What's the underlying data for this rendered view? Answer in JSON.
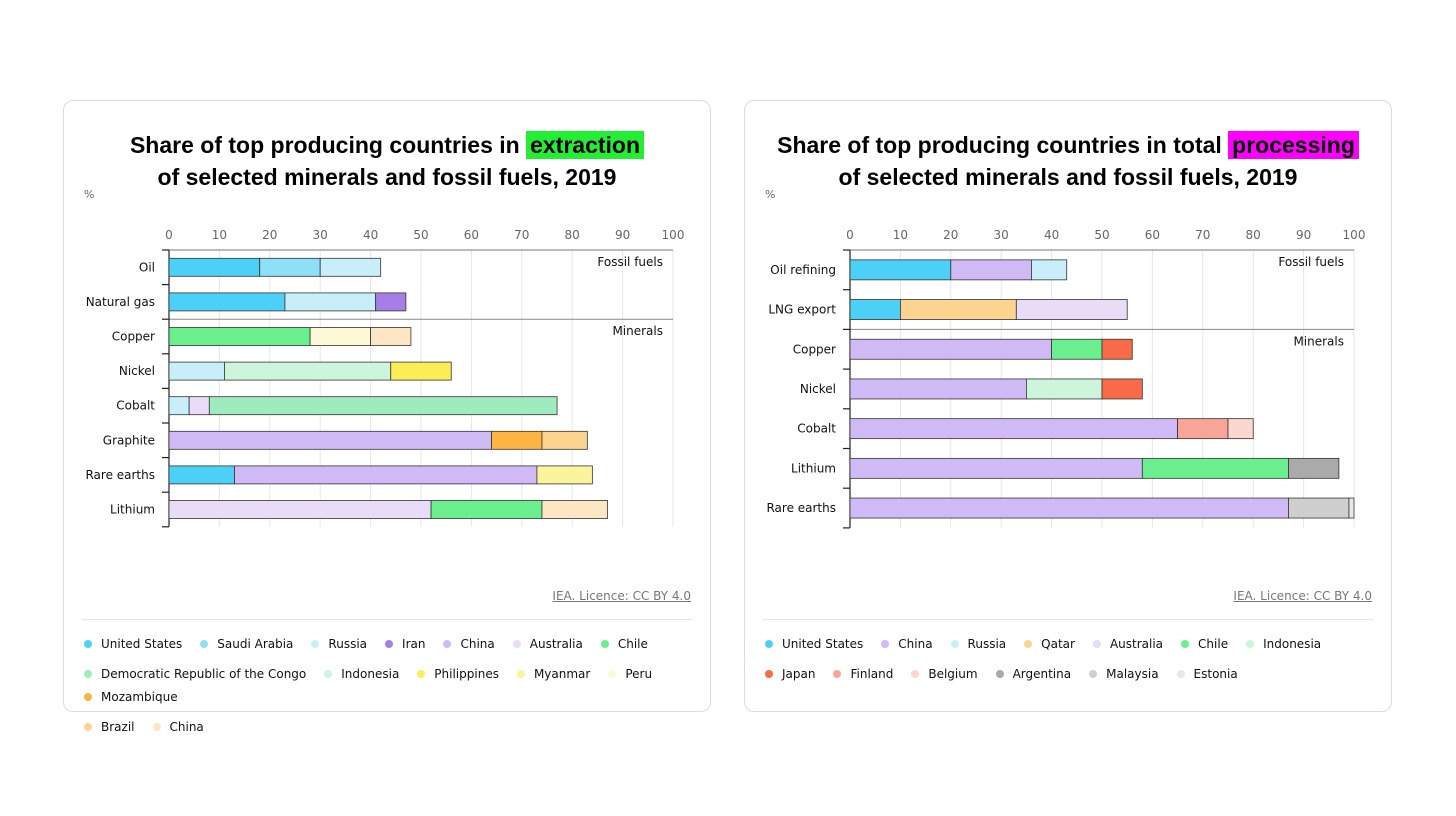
{
  "chart_data": [
    {
      "type": "bar",
      "orientation": "horizontal",
      "stacked": true,
      "title_prefix": "Share of top producing countries in",
      "title_highlight": "extraction",
      "title_line2": "of selected minerals and fossil fuels, 2019",
      "highlight_color": "#22ee33",
      "unit_label": "%",
      "xlim": [
        0,
        100
      ],
      "xticks": [
        0,
        10,
        20,
        30,
        40,
        50,
        60,
        70,
        80,
        90,
        100
      ],
      "grid": true,
      "source": "IEA. Licence: CC BY 4.0",
      "groups": [
        {
          "label": "Fossil fuels",
          "categories": [
            "Oil",
            "Natural gas"
          ]
        },
        {
          "label": "Minerals",
          "categories": [
            "Copper",
            "Nickel",
            "Cobalt",
            "Graphite",
            "Rare earths",
            "Lithium"
          ]
        }
      ],
      "rows": [
        {
          "category": "Oil",
          "segments": [
            {
              "country": "United States",
              "value": 18
            },
            {
              "country": "Saudi Arabia",
              "value": 12
            },
            {
              "country": "Russia",
              "value": 12
            }
          ]
        },
        {
          "category": "Natural gas",
          "segments": [
            {
              "country": "United States",
              "value": 23
            },
            {
              "country": "Russia",
              "value": 18
            },
            {
              "country": "Iran",
              "value": 6
            }
          ]
        },
        {
          "category": "Copper",
          "segments": [
            {
              "country": "Chile",
              "value": 28
            },
            {
              "country": "Peru",
              "value": 12
            },
            {
              "country": "China",
              "value": 8
            }
          ]
        },
        {
          "category": "Nickel",
          "segments": [
            {
              "country": "Russia",
              "value": 11
            },
            {
              "country": "Indonesia",
              "value": 33
            },
            {
              "country": "Philippines",
              "value": 12
            }
          ]
        },
        {
          "category": "Cobalt",
          "segments": [
            {
              "country": "Russia",
              "value": 4
            },
            {
              "country": "Australia",
              "value": 4
            },
            {
              "country": "Democratic Republic of the Congo",
              "value": 69
            }
          ]
        },
        {
          "category": "Graphite",
          "segments": [
            {
              "country": "China",
              "value": 64
            },
            {
              "country": "Mozambique",
              "value": 10
            },
            {
              "country": "Brazil",
              "value": 9
            }
          ]
        },
        {
          "category": "Rare earths",
          "segments": [
            {
              "country": "United States",
              "value": 13
            },
            {
              "country": "China",
              "value": 60
            },
            {
              "country": "Myanmar",
              "value": 11
            }
          ]
        },
        {
          "category": "Lithium",
          "segments": [
            {
              "country": "Australia",
              "value": 52
            },
            {
              "country": "Chile",
              "value": 22
            },
            {
              "country": "China",
              "value": 13
            }
          ]
        }
      ],
      "legend": [
        {
          "name": "United States",
          "color": "#4dd0f7"
        },
        {
          "name": "Saudi Arabia",
          "color": "#8ee0f7"
        },
        {
          "name": "Russia",
          "color": "#c8eefa"
        },
        {
          "name": "Iran",
          "color": "#a67ee6"
        },
        {
          "name": "China",
          "color": "#cfbaf5"
        },
        {
          "name": "Australia",
          "color": "#e8dcf8"
        },
        {
          "name": "Chile",
          "color": "#6aee8e"
        },
        {
          "name": "Democratic Republic of the Congo",
          "color": "#9debbe"
        },
        {
          "name": "Indonesia",
          "color": "#cdf5dc"
        },
        {
          "name": "Philippines",
          "color": "#fbef55"
        },
        {
          "name": "Myanmar",
          "color": "#fcf49c"
        },
        {
          "name": "Peru",
          "color": "#fdf9d6"
        },
        {
          "name": "Mozambique",
          "color": "#fdb443"
        },
        {
          "name": "Brazil",
          "color": "#fcd490"
        },
        {
          "name": "China",
          "color": "#fde6c4"
        }
      ]
    },
    {
      "type": "bar",
      "orientation": "horizontal",
      "stacked": true,
      "title_prefix": "Share of top producing countries in total",
      "title_highlight": "processing",
      "title_line2": "of selected minerals and fossil fuels, 2019",
      "highlight_color": "#ff00ff",
      "unit_label": "%",
      "xlim": [
        0,
        100
      ],
      "xticks": [
        0,
        10,
        20,
        30,
        40,
        50,
        60,
        70,
        80,
        90,
        100
      ],
      "grid": true,
      "source": "IEA. Licence: CC BY 4.0",
      "groups": [
        {
          "label": "Fossil fuels",
          "categories": [
            "Oil refining",
            "LNG export"
          ]
        },
        {
          "label": "Minerals",
          "categories": [
            "Copper",
            "Nickel",
            "Cobalt",
            "Lithium",
            "Rare earths"
          ]
        }
      ],
      "rows": [
        {
          "category": "Oil refining",
          "segments": [
            {
              "country": "United States",
              "value": 20
            },
            {
              "country": "China",
              "value": 16
            },
            {
              "country": "Russia",
              "value": 7
            }
          ]
        },
        {
          "category": "LNG export",
          "segments": [
            {
              "country": "United States",
              "value": 10
            },
            {
              "country": "Qatar",
              "value": 23
            },
            {
              "country": "Australia",
              "value": 22
            }
          ]
        },
        {
          "category": "Copper",
          "segments": [
            {
              "country": "China",
              "value": 40
            },
            {
              "country": "Chile",
              "value": 10
            },
            {
              "country": "Japan",
              "value": 6
            }
          ]
        },
        {
          "category": "Nickel",
          "segments": [
            {
              "country": "China",
              "value": 35
            },
            {
              "country": "Indonesia",
              "value": 15
            },
            {
              "country": "Japan",
              "value": 8
            }
          ]
        },
        {
          "category": "Cobalt",
          "segments": [
            {
              "country": "China",
              "value": 65
            },
            {
              "country": "Finland",
              "value": 10
            },
            {
              "country": "Belgium",
              "value": 5
            }
          ]
        },
        {
          "category": "Lithium",
          "segments": [
            {
              "country": "China",
              "value": 58
            },
            {
              "country": "Chile",
              "value": 29
            },
            {
              "country": "Argentina",
              "value": 10
            }
          ]
        },
        {
          "category": "Rare earths",
          "segments": [
            {
              "country": "China",
              "value": 87
            },
            {
              "country": "Malaysia",
              "value": 12
            },
            {
              "country": "Estonia",
              "value": 1
            }
          ]
        }
      ],
      "legend": [
        {
          "name": "United States",
          "color": "#4dd0f7"
        },
        {
          "name": "China",
          "color": "#cfbaf5"
        },
        {
          "name": "Russia",
          "color": "#c8eefa"
        },
        {
          "name": "Qatar",
          "color": "#fcd490"
        },
        {
          "name": "Australia",
          "color": "#e8dcf8"
        },
        {
          "name": "Chile",
          "color": "#6aee8e"
        },
        {
          "name": "Indonesia",
          "color": "#cdf5dc"
        },
        {
          "name": "Japan",
          "color": "#f86a48"
        },
        {
          "name": "Finland",
          "color": "#f8a597"
        },
        {
          "name": "Belgium",
          "color": "#fcd6d0"
        },
        {
          "name": "Argentina",
          "color": "#aaaaaa"
        },
        {
          "name": "Malaysia",
          "color": "#cfcfcf"
        },
        {
          "name": "Estonia",
          "color": "#e8e8e8"
        }
      ]
    }
  ]
}
